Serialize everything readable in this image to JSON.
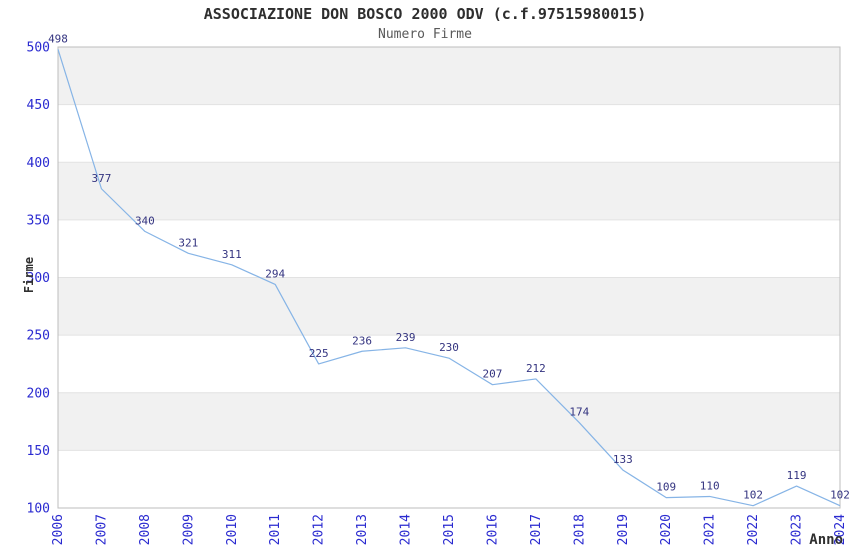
{
  "chart_data": {
    "type": "line",
    "title": "ASSOCIAZIONE DON BOSCO 2000 ODV (c.f.97515980015)",
    "subtitle": "Numero Firme",
    "xlabel": "Anno",
    "ylabel": "Firme",
    "categories": [
      "2006",
      "2007",
      "2008",
      "2009",
      "2010",
      "2011",
      "2012",
      "2013",
      "2014",
      "2015",
      "2016",
      "2017",
      "2018",
      "2019",
      "2020",
      "2021",
      "2022",
      "2023",
      "2024"
    ],
    "series": [
      {
        "name": "Numero Firme",
        "values": [
          498,
          377,
          340,
          321,
          311,
          294,
          225,
          236,
          239,
          230,
          207,
          212,
          174,
          133,
          109,
          110,
          102,
          119,
          102
        ]
      }
    ],
    "ylim": [
      100,
      500
    ],
    "ytick_step": 50,
    "yticks": [
      100,
      150,
      200,
      250,
      300,
      350,
      400,
      450,
      500
    ],
    "grid": "alternating-horizontal-bands",
    "legend": "none",
    "data_labels_shown": true,
    "colors": {
      "line": "#86b4e6",
      "tick_label": "#2a2ad0",
      "data_label": "#343480",
      "band": "#f1f1f1",
      "gridline": "#e2e2e2",
      "plot_border": "#bdbdbd",
      "title": "#2e2e2e",
      "subtitle": "#595959",
      "axis_name": "#303030",
      "background": "#ffffff"
    }
  }
}
